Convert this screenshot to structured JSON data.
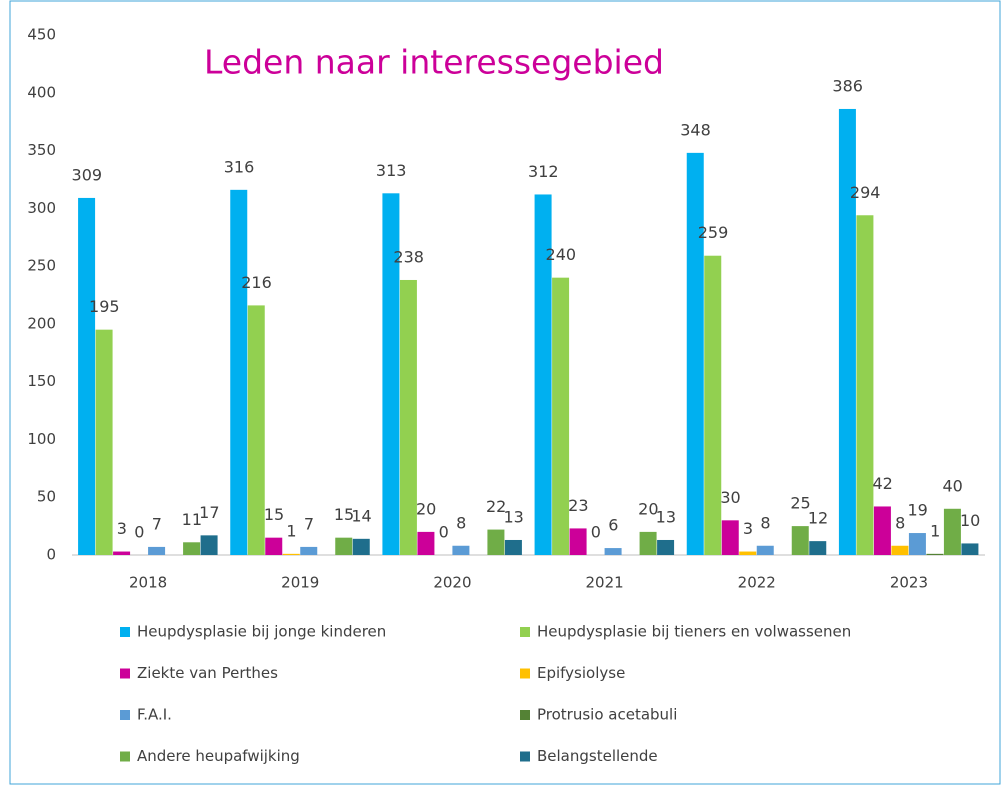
{
  "chart_data": {
    "type": "bar",
    "title": "Leden naar interessegebied",
    "categories": [
      "2018",
      "2019",
      "2020",
      "2021",
      "2022",
      "2023"
    ],
    "series": [
      {
        "name": "Heupdysplasie bij jonge kinderen",
        "color": "#00b0f0",
        "values": [
          309,
          316,
          313,
          312,
          348,
          386
        ]
      },
      {
        "name": "Heupdysplasie bij tieners en volwassenen",
        "color": "#92d050",
        "values": [
          195,
          216,
          238,
          240,
          259,
          294
        ]
      },
      {
        "name": "Ziekte van Perthes",
        "color": "#cc0099",
        "values": [
          3,
          15,
          20,
          23,
          30,
          42
        ]
      },
      {
        "name": "Epifysiolyse",
        "color": "#ffc000",
        "values": [
          0,
          1,
          0,
          0,
          3,
          8
        ]
      },
      {
        "name": "F.A.I.",
        "color": "#5b9bd5",
        "values": [
          7,
          7,
          8,
          6,
          8,
          19
        ]
      },
      {
        "name": "Protrusio acetabuli",
        "color": "#548235",
        "values": [
          null,
          null,
          null,
          null,
          null,
          1
        ]
      },
      {
        "name": "Andere heupafwijking",
        "color": "#70ad47",
        "values": [
          11,
          15,
          22,
          20,
          25,
          40
        ]
      },
      {
        "name": "Belangstellende",
        "color": "#1f6e8c",
        "values": [
          17,
          14,
          13,
          13,
          12,
          10
        ]
      }
    ],
    "ylim": [
      0,
      450
    ],
    "yticks": [
      0,
      50,
      100,
      150,
      200,
      250,
      300,
      350,
      400,
      450
    ],
    "grid": false
  }
}
